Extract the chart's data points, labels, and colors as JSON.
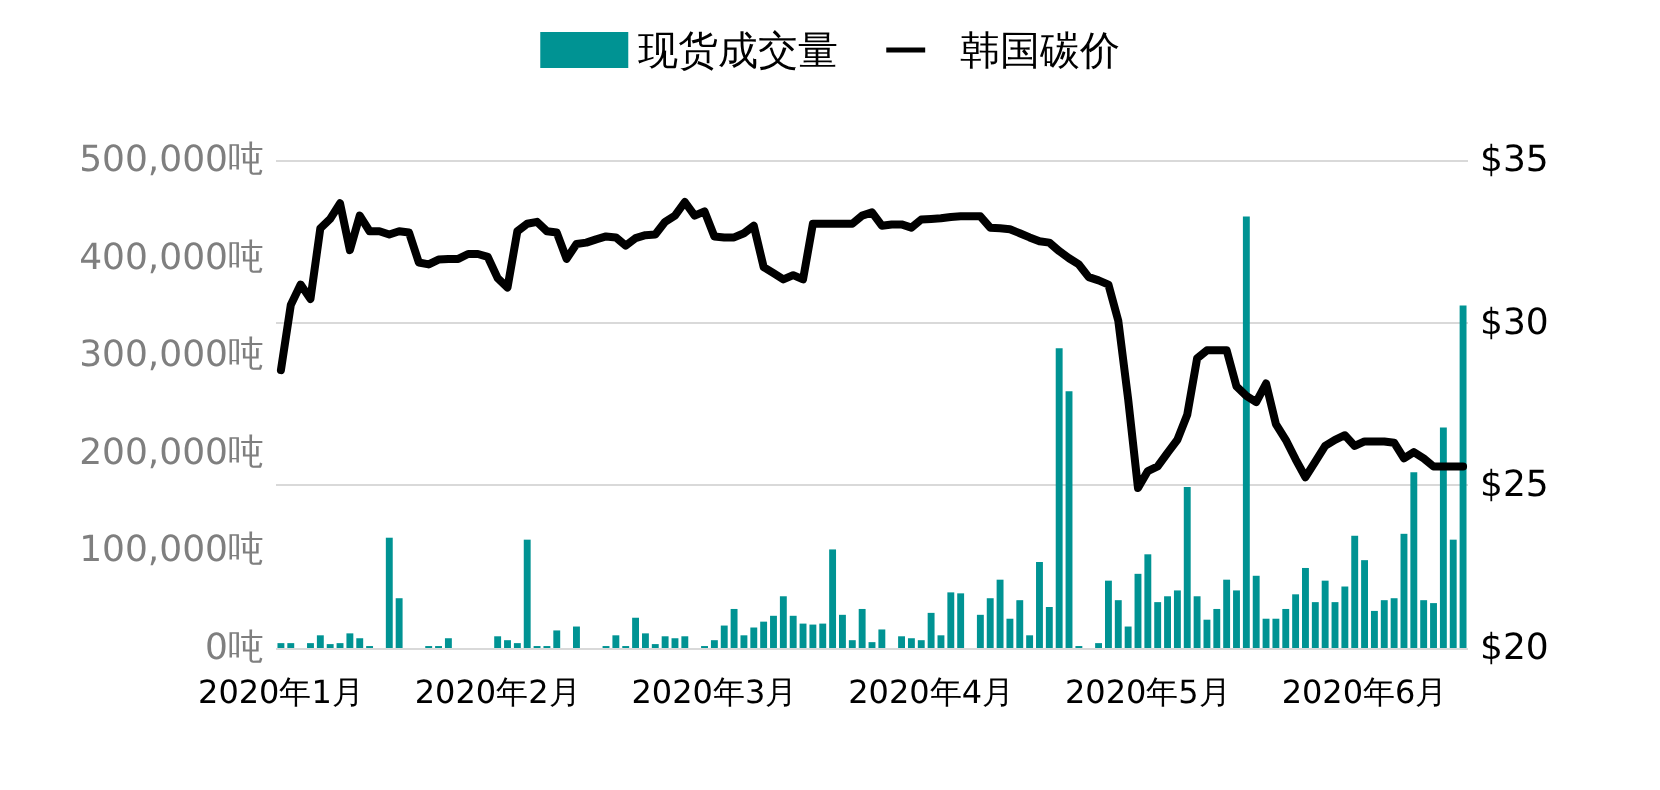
{
  "chart_data": {
    "type": "bar",
    "legend": "top",
    "grid": "y2",
    "marker": "none",
    "line_style": "solid",
    "categories": [
      "2020年1月",
      null,
      null,
      null,
      null,
      null,
      null,
      null,
      null,
      null,
      null,
      null,
      null,
      null,
      null,
      null,
      null,
      null,
      null,
      null,
      null,
      null,
      "2020年2月",
      null,
      null,
      null,
      null,
      null,
      null,
      null,
      null,
      null,
      null,
      null,
      null,
      null,
      null,
      null,
      null,
      null,
      null,
      null,
      null,
      null,
      "2020年3月",
      null,
      null,
      null,
      null,
      null,
      null,
      null,
      null,
      null,
      null,
      null,
      null,
      null,
      null,
      null,
      null,
      null,
      null,
      null,
      null,
      null,
      "2020年4月",
      null,
      null,
      null,
      null,
      null,
      null,
      null,
      null,
      null,
      null,
      null,
      null,
      null,
      null,
      null,
      null,
      null,
      null,
      null,
      null,
      null,
      "2020年5月",
      null,
      null,
      null,
      null,
      null,
      null,
      null,
      null,
      null,
      null,
      null,
      null,
      null,
      null,
      null,
      null,
      null,
      null,
      null,
      null,
      null,
      "2020年6月",
      null,
      null,
      null,
      null,
      null,
      null,
      null,
      null,
      null,
      null
    ],
    "series": [
      {
        "name": "现货成交量",
        "color": "#009393",
        "values": [
          5000,
          5000,
          null,
          5000,
          13000,
          4000,
          5000,
          15000,
          10000,
          2000,
          null,
          113000,
          51000,
          null,
          null,
          2000,
          2000,
          10000,
          null,
          null,
          null,
          null,
          12000,
          8000,
          5000,
          111000,
          2000,
          2000,
          18000,
          null,
          22000,
          null,
          null,
          2000,
          13000,
          2000,
          31000,
          15000,
          4000,
          12000,
          10000,
          12000,
          null,
          2000,
          8000,
          23000,
          40000,
          13000,
          21000,
          27000,
          33000,
          53000,
          33000,
          25000,
          24000,
          25000,
          101000,
          34000,
          8000,
          40000,
          6000,
          19000,
          null,
          12000,
          10000,
          8000,
          36000,
          13000,
          57000,
          56000,
          null,
          34000,
          51000,
          70000,
          30000,
          49000,
          13000,
          88000,
          42000,
          307000,
          263000,
          2000,
          null,
          5000,
          69000,
          49000,
          22000,
          76000,
          96000,
          47000,
          53000,
          59000,
          165000,
          53000,
          29000,
          40000,
          70000,
          59000,
          442000,
          74000,
          30000,
          30000,
          40000,
          55000,
          82000,
          47000,
          69000,
          47000,
          63000,
          115000,
          90000,
          38000,
          49000,
          51000,
          117000,
          180000,
          49000,
          46000,
          226000,
          111000,
          351000
        ]
      },
      {
        "name": "韩国碳价",
        "type": "line",
        "axis": "y2",
        "color": "#000000",
        "values": [
          28.54,
          30.54,
          31.17,
          30.73,
          32.9,
          33.19,
          33.67,
          32.23,
          33.29,
          32.81,
          32.81,
          32.71,
          32.81,
          32.77,
          31.85,
          31.79,
          31.94,
          31.96,
          31.96,
          32.11,
          32.11,
          32.02,
          31.37,
          31.08,
          32.81,
          33.04,
          33.1,
          32.81,
          32.77,
          31.96,
          32.42,
          32.46,
          32.56,
          32.65,
          32.62,
          32.37,
          32.6,
          32.69,
          32.71,
          33.1,
          33.29,
          33.71,
          33.29,
          33.42,
          32.65,
          32.62,
          32.62,
          32.75,
          32.98,
          31.71,
          31.52,
          31.33,
          31.46,
          31.33,
          33.04,
          33.04,
          33.04,
          33.04,
          33.04,
          33.29,
          33.39,
          32.98,
          33.02,
          33.02,
          32.92,
          33.17,
          33.19,
          33.21,
          33.25,
          33.27,
          33.27,
          33.27,
          32.92,
          32.9,
          32.87,
          32.75,
          32.62,
          32.5,
          32.46,
          32.2,
          31.98,
          31.79,
          31.4,
          31.3,
          31.17,
          30.06,
          27.65,
          24.92,
          25.44,
          25.58,
          26.0,
          26.4,
          27.17,
          28.9,
          29.15,
          29.15,
          29.15,
          28.04,
          27.75,
          27.56,
          28.13,
          26.88,
          26.4,
          25.8,
          25.25,
          25.73,
          26.21,
          26.4,
          26.54,
          26.21,
          26.35,
          26.35,
          26.35,
          26.31,
          25.83,
          26.02,
          25.83,
          25.58,
          25.58,
          25.58,
          25.58
        ]
      }
    ],
    "ylim": [
      0,
      500000
    ],
    "yticks": [
      {
        "value": 0,
        "label": "0吨"
      },
      {
        "value": 100000,
        "label": "100,000吨"
      },
      {
        "value": 200000,
        "label": "200,000吨"
      },
      {
        "value": 300000,
        "label": "300,000吨"
      },
      {
        "value": 400000,
        "label": "400,000吨"
      },
      {
        "value": 500000,
        "label": "500,000吨"
      }
    ],
    "y2lim": [
      20,
      35
    ],
    "y2ticks": [
      {
        "value": 20,
        "label": "$20"
      },
      {
        "value": 25,
        "label": "$25"
      },
      {
        "value": 30,
        "label": "$30"
      },
      {
        "value": 35,
        "label": "$35"
      }
    ]
  }
}
